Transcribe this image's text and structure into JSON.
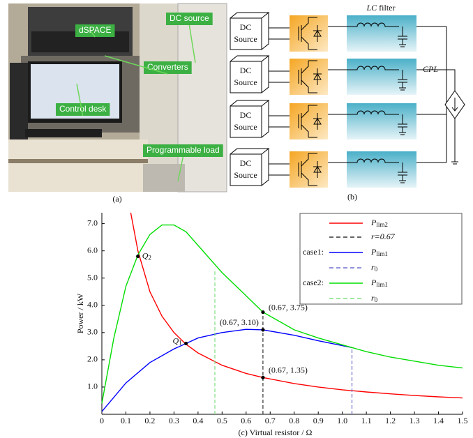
{
  "photo": {
    "labels": [
      "dSPACE",
      "DC source",
      "Converters",
      "Control desk",
      "Programmable load"
    ],
    "caption": "(a)"
  },
  "diagram": {
    "sources": [
      [
        "DC",
        "Source"
      ],
      [
        "DC",
        "Source"
      ],
      [
        "DC",
        "Source"
      ],
      [
        "DC",
        "Source"
      ]
    ],
    "filter": {
      "italic": "LC",
      "text": " filter"
    },
    "load": "CPL",
    "caption": "(b)"
  },
  "chart_data": {
    "type": "line",
    "xlabel": "(c) Virtual resistor / Ω",
    "ylabel": "Power / kW",
    "xlim": [
      0,
      1.5
    ],
    "ylim": [
      0,
      7.4
    ],
    "xticks": [
      0,
      0.1,
      0.2,
      0.3,
      0.4,
      0.5,
      0.6,
      0.7,
      0.8,
      0.9,
      {
        "value": 1,
        "label": "1.0"
      },
      1.1,
      1.2,
      1.3,
      1.4,
      1.5
    ],
    "yticks": [
      {
        "value": 1,
        "label": "1.0"
      },
      {
        "value": 2,
        "label": "2.0"
      },
      {
        "value": 3,
        "label": "3.0"
      },
      {
        "value": 4,
        "label": "4.0"
      },
      {
        "value": 5,
        "label": "5.0"
      },
      {
        "value": 6,
        "label": "6.0"
      },
      {
        "value": 7,
        "label": "7.0"
      }
    ],
    "series": [
      {
        "name": "P",
        "name_sub": "lim2",
        "color": "#ff0000",
        "x": [
          0.12,
          0.15,
          0.2,
          0.25,
          0.3,
          0.35,
          0.4,
          0.5,
          0.6,
          0.67,
          0.8,
          0.9,
          1.0,
          1.1,
          1.2,
          1.3,
          1.4,
          1.5
        ],
        "values": [
          7.4,
          6.0,
          4.5,
          3.6,
          3.0,
          2.57,
          2.25,
          1.8,
          1.5,
          1.35,
          1.13,
          1.0,
          0.9,
          0.82,
          0.75,
          0.69,
          0.64,
          0.6
        ]
      },
      {
        "name": "r=0.67",
        "color": "#333333",
        "dash": true,
        "x": [
          0.67,
          0.67
        ],
        "values": [
          0,
          3.75
        ]
      },
      {
        "group_label": "case1:",
        "name": "P",
        "name_sub": "lim1",
        "color": "#0000ff",
        "x": [
          0,
          0.1,
          0.2,
          0.3,
          0.35,
          0.4,
          0.5,
          0.6,
          0.67,
          0.8,
          0.9,
          1.0,
          1.04
        ],
        "values": [
          0.1,
          1.15,
          1.9,
          2.4,
          2.6,
          2.8,
          3.0,
          3.12,
          3.1,
          2.9,
          2.7,
          2.52,
          2.45
        ]
      },
      {
        "name": "r",
        "name_sub": "0",
        "color": "#6f6fd0",
        "dash": true,
        "x": [
          1.04,
          1.04
        ],
        "values": [
          0,
          2.45
        ]
      },
      {
        "group_label": "case2:",
        "name": "P",
        "name_sub": "lim1",
        "color": "#00dd00",
        "x": [
          0,
          0.05,
          0.1,
          0.15,
          0.2,
          0.25,
          0.3,
          0.35,
          0.4,
          0.5,
          0.6,
          0.67,
          0.8,
          0.9,
          1.0,
          1.04,
          1.1,
          1.2,
          1.3,
          1.4,
          1.5
        ],
        "values": [
          0.4,
          2.8,
          4.7,
          5.85,
          6.6,
          6.95,
          6.95,
          6.7,
          6.2,
          5.2,
          4.35,
          3.75,
          3.1,
          2.8,
          2.55,
          2.45,
          2.3,
          2.1,
          1.95,
          1.8,
          1.7
        ]
      },
      {
        "name": "r",
        "name_sub": "0",
        "color": "#80e080",
        "dash": true,
        "x": [
          0.47,
          0.47
        ],
        "values": [
          0,
          5.3
        ]
      }
    ],
    "points": [
      {
        "x": 0.15,
        "y": 5.8,
        "label": "Q",
        "label_sub": "2"
      },
      {
        "x": 0.35,
        "y": 2.6,
        "label": "Q",
        "label_sub": "1"
      },
      {
        "x": 0.67,
        "y": 3.75,
        "label": "(0.67, 3.75)"
      },
      {
        "x": 0.67,
        "y": 3.1,
        "label": "(0.67, 3.10)"
      },
      {
        "x": 0.67,
        "y": 1.35,
        "label": "(0.67, 1.35)"
      }
    ]
  }
}
